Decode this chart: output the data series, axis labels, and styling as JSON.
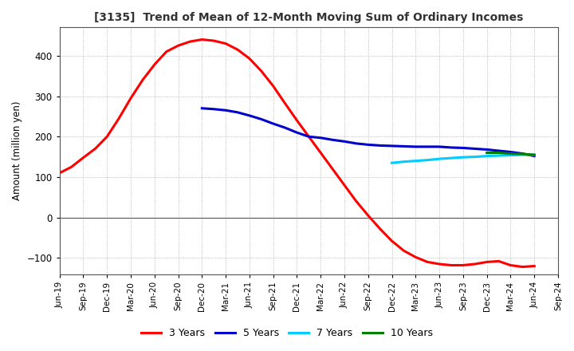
{
  "title": "[3135]  Trend of Mean of 12-Month Moving Sum of Ordinary Incomes",
  "ylabel": "Amount (million yen)",
  "ylim": [
    -140,
    470
  ],
  "yticks": [
    -100,
    0,
    100,
    200,
    300,
    400
  ],
  "background_color": "#ffffff",
  "grid_color": "#aaaaaa",
  "series": {
    "3years": {
      "color": "#ff0000",
      "label": "3 Years",
      "x": [
        0,
        1,
        2,
        3,
        4,
        5,
        6,
        7,
        8,
        9,
        10,
        11,
        12,
        13,
        14,
        15,
        16,
        17,
        18,
        19,
        20,
        21,
        22,
        23,
        24,
        25,
        26,
        27,
        28,
        29,
        30,
        31,
        32,
        33,
        34,
        35,
        36,
        37,
        38,
        39,
        40
      ],
      "y": [
        110,
        125,
        148,
        170,
        200,
        245,
        295,
        340,
        378,
        410,
        425,
        435,
        440,
        437,
        430,
        415,
        393,
        362,
        325,
        282,
        240,
        200,
        160,
        120,
        80,
        40,
        5,
        -28,
        -58,
        -82,
        -98,
        -110,
        -115,
        -118,
        -118,
        -115,
        -110,
        -108,
        -118,
        -122,
        -120
      ]
    },
    "5years": {
      "color": "#0000cc",
      "label": "5 Years",
      "x": [
        12,
        13,
        14,
        15,
        16,
        17,
        18,
        19,
        20,
        21,
        22,
        23,
        24,
        25,
        26,
        27,
        28,
        29,
        30,
        31,
        32,
        33,
        34,
        35,
        36,
        37,
        38,
        39,
        40
      ],
      "y": [
        270,
        268,
        265,
        260,
        252,
        243,
        232,
        222,
        210,
        200,
        197,
        192,
        188,
        183,
        180,
        178,
        177,
        176,
        175,
        175,
        175,
        173,
        172,
        170,
        168,
        165,
        162,
        158,
        152
      ]
    },
    "7years": {
      "color": "#00ccff",
      "label": "7 Years",
      "x": [
        28,
        29,
        30,
        31,
        32,
        33,
        34,
        35,
        36,
        37,
        38,
        39,
        40
      ],
      "y": [
        135,
        138,
        140,
        142,
        145,
        147,
        149,
        150,
        152,
        153,
        154,
        155,
        155
      ]
    },
    "10years": {
      "color": "#008000",
      "label": "10 Years",
      "x": [
        36,
        37,
        38,
        39,
        40
      ],
      "y": [
        160,
        160,
        158,
        157,
        155
      ]
    }
  },
  "xtick_labels": [
    "Jun-19",
    "Sep-19",
    "Dec-19",
    "Mar-20",
    "Jun-20",
    "Sep-20",
    "Dec-20",
    "Mar-21",
    "Jun-21",
    "Sep-21",
    "Dec-21",
    "Mar-22",
    "Jun-22",
    "Sep-22",
    "Dec-22",
    "Mar-23",
    "Jun-23",
    "Sep-23",
    "Dec-23",
    "Mar-24",
    "Jun-24",
    "Sep-24"
  ],
  "xtick_positions": [
    0,
    2,
    4,
    6,
    8,
    10,
    12,
    14,
    16,
    18,
    20,
    22,
    24,
    26,
    28,
    30,
    32,
    34,
    36,
    38,
    40,
    42
  ],
  "xlim": [
    0,
    42
  ],
  "linewidth": 2.2
}
